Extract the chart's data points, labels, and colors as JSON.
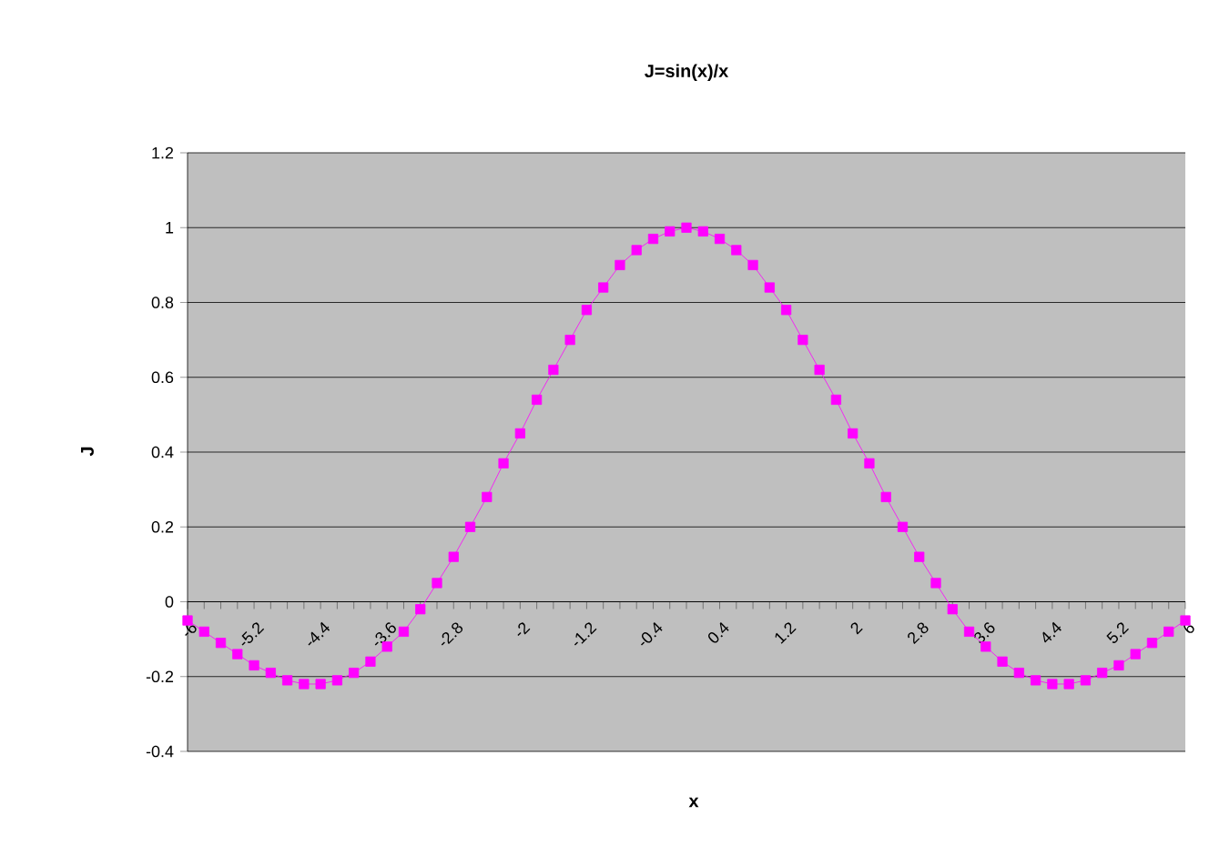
{
  "chart_data": {
    "type": "line",
    "title": "J=sin(x)/x",
    "xlabel": "x",
    "ylabel": "J",
    "categories": [
      "-6",
      null,
      null,
      null,
      "-5.2",
      null,
      null,
      null,
      "-4.4",
      null,
      null,
      null,
      "-3.6",
      null,
      null,
      null,
      "-2.8",
      null,
      null,
      null,
      "-2",
      null,
      null,
      null,
      "-1.2",
      null,
      null,
      null,
      "-0.4",
      null,
      null,
      null,
      "0.4",
      null,
      null,
      null,
      "1.2",
      null,
      null,
      null,
      "2",
      null,
      null,
      null,
      "2.8",
      null,
      null,
      null,
      "3.6",
      null,
      null,
      null,
      "4.4",
      null,
      null,
      null,
      "5.2",
      null,
      null,
      null,
      "6"
    ],
    "series": [
      {
        "color": "#ff00ff",
        "values": [
          -0.05,
          -0.08,
          -0.11,
          -0.14,
          -0.17,
          -0.19,
          -0.21,
          -0.22,
          -0.22,
          -0.21,
          -0.19,
          -0.16,
          -0.12,
          -0.08,
          -0.02,
          0.05,
          0.12,
          0.2,
          0.28,
          0.37,
          0.45,
          0.54,
          0.62,
          0.7,
          0.78,
          0.84,
          0.9,
          0.94,
          0.97,
          0.99,
          1,
          0.99,
          0.97,
          0.94,
          0.9,
          0.84,
          0.78,
          0.7,
          0.62,
          0.54,
          0.45,
          0.37,
          0.28,
          0.2,
          0.12,
          0.05,
          -0.02,
          -0.08,
          -0.12,
          -0.16,
          -0.19,
          -0.21,
          -0.22,
          -0.22,
          -0.21,
          -0.19,
          -0.17,
          -0.14,
          -0.11,
          -0.08,
          -0.05
        ]
      }
    ],
    "ylim": [
      -0.4,
      1.2
    ],
    "yticks": [
      -0.4,
      -0.2,
      0,
      0.2,
      0.4,
      0.6,
      0.8,
      1,
      1.2
    ],
    "grid": "y",
    "marker": "square",
    "line_style": "solid"
  }
}
